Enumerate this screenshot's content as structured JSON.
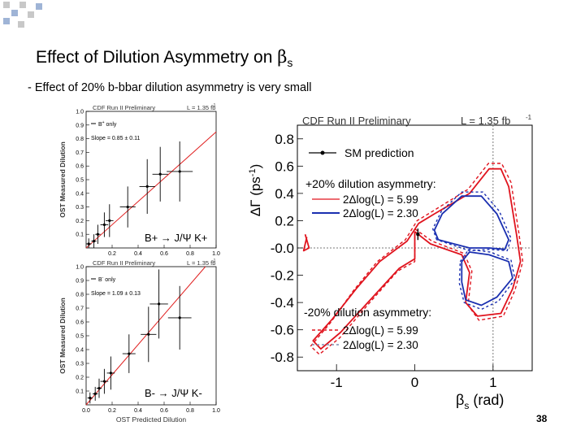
{
  "slide": {
    "title_prefix": "Effect of Dilution Asymmetry on ",
    "title_beta": "β",
    "title_sub": "s",
    "bullet": "- Effect of 20% b-bbar dilution asymmetry is very small",
    "page_number": "38",
    "colors": {
      "grey_square": "#c8c8c8",
      "blue_square": "#9fb4d6"
    }
  },
  "chart_data": [
    {
      "type": "scatter",
      "header_left": "CDF Run II Preliminary",
      "header_right": "L = 1.35 fb",
      "header_right_sup": "-1",
      "legend": [
        "B",
        "only"
      ],
      "legend_sup": "+",
      "slope_text": "Slope = 0.85 ± 0.11",
      "ylabel": "OST Measured Dilution",
      "xlabel": "",
      "overlay_label": "B+ → J/Ψ K+",
      "xlim": [
        0,
        1
      ],
      "ylim": [
        0,
        1
      ],
      "yticks": [
        "0.1",
        "0.2",
        "0.3",
        "0.4",
        "0.5",
        "0.6",
        "0.7",
        "0.8",
        "0.9",
        "1.0"
      ],
      "xticks": [
        "0.2",
        "0.4",
        "0.6",
        "0.8",
        "1.0"
      ],
      "points": [
        {
          "x": 0.02,
          "y": 0.03,
          "xerr": 0.02,
          "yerr": 0.04
        },
        {
          "x": 0.06,
          "y": 0.05,
          "xerr": 0.02,
          "yerr": 0.05
        },
        {
          "x": 0.09,
          "y": 0.1,
          "xerr": 0.02,
          "yerr": 0.07
        },
        {
          "x": 0.14,
          "y": 0.17,
          "xerr": 0.03,
          "yerr": 0.09
        },
        {
          "x": 0.18,
          "y": 0.2,
          "xerr": 0.03,
          "yerr": 0.12
        },
        {
          "x": 0.32,
          "y": 0.3,
          "xerr": 0.06,
          "yerr": 0.15
        },
        {
          "x": 0.47,
          "y": 0.45,
          "xerr": 0.06,
          "yerr": 0.2
        },
        {
          "x": 0.57,
          "y": 0.54,
          "xerr": 0.06,
          "yerr": 0.2
        },
        {
          "x": 0.72,
          "y": 0.56,
          "xerr": 0.1,
          "yerr": 0.22
        }
      ],
      "fit": {
        "slope": 0.85,
        "intercept": 0.0,
        "color": "#e02020"
      }
    },
    {
      "type": "scatter",
      "header_left": "CDF Run II Preliminary",
      "header_right": "L = 1.35 fb",
      "header_right_sup": "-1",
      "legend": [
        "B",
        "only"
      ],
      "legend_sup": "-",
      "slope_text": "Slope = 1.09 ± 0.13",
      "ylabel": "OST Measured Dilution",
      "xlabel": "OST Predicted Dilution",
      "overlay_label": "B- → J/Ψ K-",
      "xlim": [
        0,
        1
      ],
      "ylim": [
        0,
        1
      ],
      "yticks": [
        "0.1",
        "0.2",
        "0.3",
        "0.4",
        "0.5",
        "0.6",
        "0.7",
        "0.8",
        "0.9",
        "1.0"
      ],
      "xticks": [
        "0.0",
        "0.2",
        "0.4",
        "0.6",
        "0.8",
        "1.0"
      ],
      "points": [
        {
          "x": 0.03,
          "y": 0.05,
          "xerr": 0.02,
          "yerr": 0.04
        },
        {
          "x": 0.07,
          "y": 0.08,
          "xerr": 0.02,
          "yerr": 0.05
        },
        {
          "x": 0.1,
          "y": 0.12,
          "xerr": 0.02,
          "yerr": 0.07
        },
        {
          "x": 0.14,
          "y": 0.17,
          "xerr": 0.03,
          "yerr": 0.09
        },
        {
          "x": 0.19,
          "y": 0.23,
          "xerr": 0.03,
          "yerr": 0.12
        },
        {
          "x": 0.33,
          "y": 0.37,
          "xerr": 0.05,
          "yerr": 0.14
        },
        {
          "x": 0.48,
          "y": 0.51,
          "xerr": 0.06,
          "yerr": 0.2
        },
        {
          "x": 0.56,
          "y": 0.73,
          "xerr": 0.07,
          "yerr": 0.25
        },
        {
          "x": 0.72,
          "y": 0.63,
          "xerr": 0.09,
          "yerr": 0.23
        }
      ],
      "fit": {
        "slope": 1.09,
        "intercept": 0.0,
        "color": "#e02020"
      }
    },
    {
      "type": "line",
      "header_left": "CDF Run II Preliminary",
      "header_right": "L = 1.35 fb",
      "header_right_sup": "-1",
      "ylabel_main": "ΔΓ (ps",
      "ylabel_sup": "-1",
      "ylabel_end": ")",
      "xlabel_main": "β",
      "xlabel_sub": "s",
      "xlabel_end": " (rad)",
      "xlim": [
        -1.5,
        1.5
      ],
      "ylim": [
        -0.9,
        0.9
      ],
      "yticks": [
        {
          "v": 0.8,
          "label": "0.8"
        },
        {
          "v": 0.6,
          "label": "0.6"
        },
        {
          "v": 0.4,
          "label": "0.4"
        },
        {
          "v": 0.2,
          "label": "0.2"
        },
        {
          "v": 0.0,
          "label": "-0.0"
        },
        {
          "v": -0.2,
          "label": "-0.2"
        },
        {
          "v": -0.4,
          "label": "-0.4"
        },
        {
          "v": -0.6,
          "label": "-0.6"
        },
        {
          "v": -0.8,
          "label": "-0.8"
        }
      ],
      "xticks": [
        {
          "v": -1,
          "label": "-1"
        },
        {
          "v": 0,
          "label": "0"
        },
        {
          "v": 1,
          "label": "1"
        }
      ],
      "sm_point": {
        "x": 0.04,
        "y": 0.1
      },
      "legend": {
        "sm": "SM prediction",
        "plus_head": "+20% dilution asymmetry:",
        "plus_red": "2Δlog(L) = 5.99",
        "plus_blue": "2Δlog(L) = 2.30",
        "minus_head": "-20% dilution asymmetry:",
        "minus_red": "2Δlog(L) = 5.99",
        "minus_blue": "2Δlog(L) = 2.30"
      },
      "colors": {
        "red": "#e0141e",
        "blue": "#1a2fb0",
        "grid": "#7a7a7a"
      },
      "series": [
        {
          "style": "red-solid",
          "points": [
            [
              0.0,
              0.12
            ],
            [
              0.2,
              0.03
            ],
            [
              0.6,
              -0.05
            ],
            [
              0.7,
              -0.18
            ],
            [
              0.65,
              -0.4
            ],
            [
              0.8,
              -0.5
            ],
            [
              1.1,
              -0.48
            ],
            [
              1.25,
              -0.3
            ],
            [
              1.35,
              -0.1
            ],
            [
              1.3,
              0.1
            ],
            [
              1.2,
              0.45
            ],
            [
              1.1,
              0.58
            ],
            [
              0.95,
              0.58
            ],
            [
              0.7,
              0.4
            ],
            [
              0.25,
              0.25
            ],
            [
              0.05,
              0.18
            ],
            [
              -0.1,
              0.05
            ],
            [
              -0.45,
              -0.1
            ],
            [
              -0.75,
              -0.3
            ],
            [
              -1.05,
              -0.52
            ],
            [
              -1.3,
              -0.68
            ],
            [
              -1.2,
              -0.74
            ],
            [
              -0.95,
              -0.62
            ],
            [
              -0.6,
              -0.4
            ],
            [
              -0.2,
              -0.15
            ],
            [
              0.0,
              -0.08
            ],
            [
              0.0,
              0.12
            ]
          ]
        },
        {
          "style": "red-dashed",
          "points": [
            [
              0.0,
              0.14
            ],
            [
              0.22,
              0.05
            ],
            [
              0.63,
              -0.04
            ],
            [
              0.73,
              -0.17
            ],
            [
              0.68,
              -0.42
            ],
            [
              0.82,
              -0.53
            ],
            [
              1.13,
              -0.5
            ],
            [
              1.28,
              -0.31
            ],
            [
              1.38,
              -0.1
            ],
            [
              1.33,
              0.11
            ],
            [
              1.23,
              0.48
            ],
            [
              1.11,
              0.62
            ],
            [
              0.94,
              0.62
            ],
            [
              0.68,
              0.43
            ],
            [
              0.23,
              0.27
            ],
            [
              0.03,
              0.2
            ],
            [
              -0.12,
              0.06
            ],
            [
              -0.48,
              -0.1
            ],
            [
              -0.78,
              -0.31
            ],
            [
              -1.08,
              -0.55
            ],
            [
              -1.33,
              -0.72
            ],
            [
              -1.22,
              -0.78
            ],
            [
              -0.96,
              -0.66
            ],
            [
              -0.62,
              -0.43
            ],
            [
              -0.22,
              -0.17
            ],
            [
              0.0,
              -0.1
            ],
            [
              0.0,
              0.14
            ]
          ]
        },
        {
          "style": "blue-solid",
          "points": [
            [
              0.3,
              0.06
            ],
            [
              0.25,
              0.13
            ],
            [
              0.35,
              0.25
            ],
            [
              0.6,
              0.38
            ],
            [
              0.85,
              0.38
            ],
            [
              1.05,
              0.25
            ],
            [
              1.2,
              0.06
            ],
            [
              1.15,
              -0.01
            ],
            [
              0.95,
              0.0
            ],
            [
              0.7,
              -0.0
            ],
            [
              0.5,
              0.03
            ],
            [
              0.3,
              0.06
            ]
          ]
        },
        {
          "style": "blue-dashed",
          "points": [
            [
              0.28,
              0.06
            ],
            [
              0.23,
              0.14
            ],
            [
              0.34,
              0.27
            ],
            [
              0.6,
              0.41
            ],
            [
              0.87,
              0.41
            ],
            [
              1.08,
              0.27
            ],
            [
              1.23,
              0.07
            ],
            [
              1.18,
              -0.02
            ],
            [
              0.96,
              -0.01
            ],
            [
              0.7,
              -0.02
            ],
            [
              0.49,
              0.02
            ],
            [
              0.28,
              0.06
            ]
          ]
        },
        {
          "style": "blue-solid",
          "points": [
            [
              0.6,
              -0.1
            ],
            [
              0.7,
              -0.03
            ],
            [
              0.95,
              -0.05
            ],
            [
              1.2,
              -0.1
            ],
            [
              1.25,
              -0.22
            ],
            [
              1.05,
              -0.36
            ],
            [
              0.85,
              -0.42
            ],
            [
              0.65,
              -0.38
            ],
            [
              0.6,
              -0.25
            ],
            [
              0.6,
              -0.1
            ]
          ]
        },
        {
          "style": "blue-dashed",
          "points": [
            [
              0.58,
              -0.1
            ],
            [
              0.69,
              -0.01
            ],
            [
              0.96,
              -0.03
            ],
            [
              1.23,
              -0.09
            ],
            [
              1.28,
              -0.23
            ],
            [
              1.07,
              -0.39
            ],
            [
              0.85,
              -0.45
            ],
            [
              0.63,
              -0.4
            ],
            [
              0.57,
              -0.26
            ],
            [
              0.58,
              -0.1
            ]
          ]
        },
        {
          "style": "red-solid",
          "points": [
            [
              -1.4,
              0.1
            ],
            [
              -1.35,
              0.0
            ],
            [
              -1.42,
              -0.02
            ],
            [
              -1.38,
              0.08
            ]
          ]
        }
      ]
    }
  ]
}
